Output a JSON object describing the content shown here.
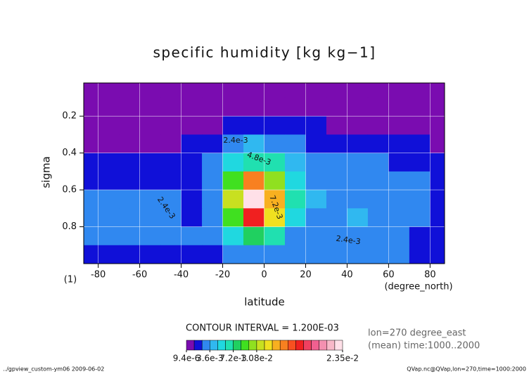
{
  "chart_data": {
    "type": "contour",
    "title": "specific humidity [kg kg−1]",
    "x_label": "latitude",
    "y_label": "sigma",
    "x_units": "(degree_north)",
    "y_units": "(1)",
    "x": [
      -85,
      -75,
      -65,
      -55,
      -45,
      -35,
      -25,
      -15,
      -5,
      5,
      15,
      25,
      35,
      45,
      55,
      65,
      75,
      85
    ],
    "y": [
      0.05,
      0.15,
      0.25,
      0.35,
      0.45,
      0.55,
      0.65,
      0.75,
      0.85,
      0.95
    ],
    "z": [
      [
        0.0003,
        0.0003,
        0.0003,
        0.0003,
        0.0003,
        0.0003,
        0.0003,
        0.0003,
        0.0003,
        0.0003,
        0.0003,
        0.0003,
        0.0003,
        0.0003,
        0.0003,
        0.0003,
        0.0003,
        0.0003
      ],
      [
        0.0005,
        0.0005,
        0.0005,
        0.0005,
        0.0005,
        0.0005,
        0.0005,
        0.0005,
        0.0005,
        0.0005,
        0.0005,
        0.0005,
        0.0005,
        0.0005,
        0.0005,
        0.0005,
        0.0005,
        0.0005
      ],
      [
        0.0007,
        0.0007,
        0.0007,
        0.0007,
        0.0007,
        0.0007,
        0.001,
        0.0015,
        0.0015,
        0.0015,
        0.0015,
        0.0013,
        0.0009,
        0.0009,
        0.0009,
        0.0009,
        0.0009,
        0.0009
      ],
      [
        0.0009,
        0.0009,
        0.0009,
        0.0009,
        0.0009,
        0.0013,
        0.002,
        0.003,
        0.004,
        0.0035,
        0.0028,
        0.0018,
        0.0014,
        0.0014,
        0.0014,
        0.0014,
        0.0014,
        0.001
      ],
      [
        0.0013,
        0.0013,
        0.0013,
        0.0013,
        0.0015,
        0.0017,
        0.0024,
        0.005,
        0.007,
        0.006,
        0.004,
        0.0026,
        0.0025,
        0.0026,
        0.0025,
        0.0022,
        0.0016,
        0.0013
      ],
      [
        0.002,
        0.0021,
        0.0022,
        0.0023,
        0.002,
        0.0018,
        0.0026,
        0.009,
        0.015,
        0.01,
        0.005,
        0.003,
        0.003,
        0.0032,
        0.0032,
        0.003,
        0.0024,
        0.0016
      ],
      [
        0.0025,
        0.0026,
        0.0028,
        0.003,
        0.0026,
        0.002,
        0.003,
        0.011,
        0.0235,
        0.014,
        0.006,
        0.0036,
        0.0032,
        0.0034,
        0.0034,
        0.0032,
        0.0026,
        0.0018
      ],
      [
        0.0028,
        0.0029,
        0.0031,
        0.0032,
        0.0028,
        0.0022,
        0.003,
        0.009,
        0.017,
        0.012,
        0.005,
        0.0032,
        0.0034,
        0.0038,
        0.0034,
        0.003,
        0.0026,
        0.002
      ],
      [
        0.0026,
        0.0026,
        0.0026,
        0.0026,
        0.0026,
        0.0024,
        0.0028,
        0.0055,
        0.008,
        0.006,
        0.0035,
        0.0028,
        0.003,
        0.003,
        0.003,
        0.003,
        0.0022,
        0.0018
      ],
      [
        0.002,
        0.002,
        0.002,
        0.002,
        0.002,
        0.002,
        0.0022,
        0.003,
        0.0035,
        0.003,
        0.0024,
        0.0024,
        0.0024,
        0.0024,
        0.0024,
        0.0024,
        0.0018,
        0.0015
      ]
    ],
    "xlim": [
      -87,
      87
    ],
    "ylim": [
      1.0,
      0.02
    ],
    "xticks": [
      -80,
      -60,
      -40,
      -20,
      0,
      20,
      40,
      60,
      80
    ],
    "yticks": [
      0.2,
      0.4,
      0.6,
      0.8
    ],
    "grid": true,
    "levels": [
      9.4e-06,
      0.0012,
      0.0024,
      0.0036,
      0.0048,
      0.006,
      0.0072,
      0.0084,
      0.0096,
      0.0108,
      0.012,
      0.0132,
      0.0144,
      0.0156,
      0.0168,
      0.018,
      0.0192,
      0.0204,
      0.0216,
      0.0228,
      0.0235
    ],
    "colors": [
      "#7a0cb0",
      "#1010d8",
      "#3088f0",
      "#30b8f0",
      "#20d8e0",
      "#20e0b0",
      "#20d060",
      "#40e020",
      "#90e020",
      "#c8e020",
      "#f0e020",
      "#f8b020",
      "#f88020",
      "#f85020",
      "#f02020",
      "#f04060",
      "#f06090",
      "#f490b0",
      "#f8b8c8",
      "#ffe0e8"
    ],
    "colorbar_ticks": [
      {
        "value": 9.4e-06,
        "label": "9.4e-6"
      },
      {
        "value": 0.0036,
        "label": "3.6e-3"
      },
      {
        "value": 0.0072,
        "label": "7.2e-3"
      },
      {
        "value": 0.0108,
        "label": "1.08e-2"
      },
      {
        "value": 0.0235,
        "label": "2.35e-2"
      }
    ],
    "contour_labels": [
      "2.4e-3",
      "4.8e-3",
      "7.2e-3",
      "2.4e-3",
      "2.4e-3"
    ],
    "contour_interval": "CONTOUR INTERVAL = 1.200E-03",
    "notes": [
      "lon=270 degree_east",
      "(mean) time:1000..2000"
    ],
    "footer": {
      "left": "../gpview_custom-ym06  2009-06-02",
      "right": "QVap.nc@QVap,lon=270,time=1000:2000"
    }
  }
}
